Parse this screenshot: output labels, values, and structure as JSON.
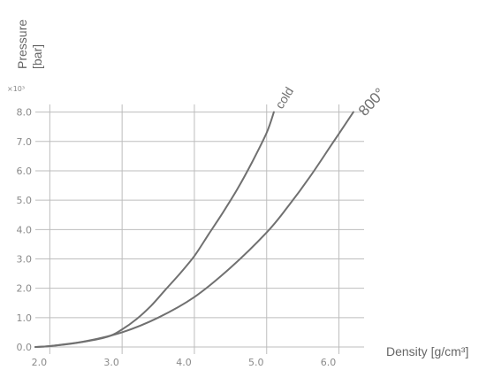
{
  "chart_data": {
    "type": "line",
    "title": "",
    "ylabel_line1": "Pressure",
    "ylabel_line2": "[bar]",
    "y_multiplier": "×10³",
    "xlabel": "Density [g/cm³]",
    "xlim": [
      1.8,
      6.25
    ],
    "ylim": [
      0,
      8.2
    ],
    "x_ticks": [
      2.0,
      3.0,
      4.0,
      5.0,
      6.0
    ],
    "x_tick_labels": [
      "2.0",
      "3.0",
      "4.0",
      "5.0",
      "6.0"
    ],
    "y_ticks": [
      0,
      1,
      2,
      3,
      4,
      5,
      6,
      7,
      8
    ],
    "y_tick_labels": [
      "0.0",
      "1.0",
      "2.0",
      "3.0",
      "4.0",
      "5.0",
      "6.0",
      "7.0",
      "8.0"
    ],
    "grid": true,
    "line_color": "#707070",
    "grid_color": "#bdbdbd",
    "series": [
      {
        "name": "cold",
        "x": [
          1.8,
          2.0,
          2.4,
          2.8,
          3.0,
          3.2,
          3.4,
          3.6,
          3.8,
          4.0,
          4.2,
          4.4,
          4.6,
          4.8,
          5.0,
          5.1
        ],
        "y": [
          0.0,
          0.03,
          0.15,
          0.35,
          0.6,
          0.95,
          1.4,
          1.95,
          2.5,
          3.1,
          3.85,
          4.6,
          5.4,
          6.3,
          7.3,
          8.0
        ]
      },
      {
        "name": "800°",
        "x": [
          1.8,
          2.0,
          2.5,
          3.0,
          3.5,
          4.0,
          4.5,
          5.0,
          5.3,
          5.6,
          5.9,
          6.2
        ],
        "y": [
          0.0,
          0.03,
          0.2,
          0.5,
          1.0,
          1.7,
          2.7,
          3.9,
          4.8,
          5.8,
          6.9,
          8.0
        ]
      }
    ]
  }
}
